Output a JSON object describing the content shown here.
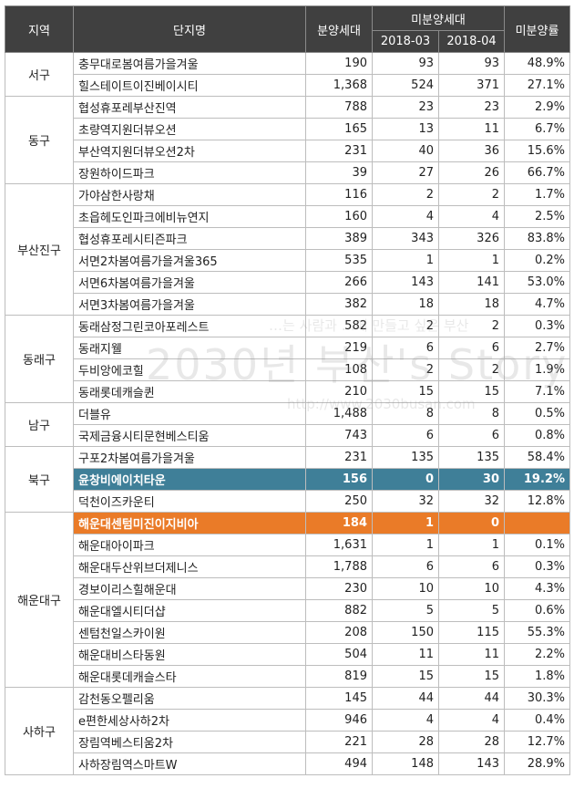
{
  "headers": {
    "region": "지역",
    "complex": "단지명",
    "supply": "분양세대",
    "unsold": "미분양세대",
    "month1": "2018-03",
    "month2": "2018-04",
    "rate": "미분양률"
  },
  "colors": {
    "header_bg": "#404040",
    "highlight_blue": "#3f7f98",
    "highlight_orange": "#ea7b28"
  },
  "groups": [
    {
      "region": "서구",
      "rows": [
        {
          "name": "충무대로봄여름가을겨울",
          "supply": "190",
          "m1": "93",
          "m2": "93",
          "rate": "48.9%"
        },
        {
          "name": "힐스테이트이진베이시티",
          "supply": "1,368",
          "m1": "524",
          "m2": "371",
          "rate": "27.1%"
        }
      ]
    },
    {
      "region": "동구",
      "rows": [
        {
          "name": "협성휴포레부산진역",
          "supply": "788",
          "m1": "23",
          "m2": "23",
          "rate": "2.9%"
        },
        {
          "name": "초량역지원더뷰오션",
          "supply": "165",
          "m1": "13",
          "m2": "11",
          "rate": "6.7%"
        },
        {
          "name": "부산역지원더뷰오션2차",
          "supply": "231",
          "m1": "40",
          "m2": "36",
          "rate": "15.6%"
        },
        {
          "name": "장원하이드파크",
          "supply": "39",
          "m1": "27",
          "m2": "26",
          "rate": "66.7%"
        }
      ]
    },
    {
      "region": "부산진구",
      "rows": [
        {
          "name": "가야삼한사랑채",
          "supply": "116",
          "m1": "2",
          "m2": "2",
          "rate": "1.7%"
        },
        {
          "name": "초읍헤도인파크에비뉴연지",
          "supply": "160",
          "m1": "4",
          "m2": "4",
          "rate": "2.5%"
        },
        {
          "name": "협성휴포레시티즌파크",
          "supply": "389",
          "m1": "343",
          "m2": "326",
          "rate": "83.8%"
        },
        {
          "name": "서면2차봄여름가을겨울365",
          "supply": "535",
          "m1": "1",
          "m2": "1",
          "rate": "0.2%"
        },
        {
          "name": "서면6차봄여름가을겨울",
          "supply": "266",
          "m1": "143",
          "m2": "141",
          "rate": "53.0%"
        },
        {
          "name": "서면3차봄여름가을겨울",
          "supply": "382",
          "m1": "18",
          "m2": "18",
          "rate": "4.7%"
        }
      ]
    },
    {
      "region": "동래구",
      "rows": [
        {
          "name": "동래삼정그린코아포레스트",
          "supply": "582",
          "m1": "2",
          "m2": "2",
          "rate": "0.3%"
        },
        {
          "name": "동래지웰",
          "supply": "219",
          "m1": "6",
          "m2": "6",
          "rate": "2.7%"
        },
        {
          "name": "두비앙에코힐",
          "supply": "108",
          "m1": "2",
          "m2": "2",
          "rate": "1.9%"
        },
        {
          "name": "동래롯데캐슬퀸",
          "supply": "210",
          "m1": "15",
          "m2": "15",
          "rate": "7.1%"
        }
      ]
    },
    {
      "region": "남구",
      "rows": [
        {
          "name": "더블유",
          "supply": "1,488",
          "m1": "8",
          "m2": "8",
          "rate": "0.5%"
        },
        {
          "name": "국제금융시티문현베스티움",
          "supply": "743",
          "m1": "6",
          "m2": "6",
          "rate": "0.8%"
        }
      ]
    },
    {
      "region": "북구",
      "rows": [
        {
          "name": "구포2차봄여름가을겨울",
          "supply": "231",
          "m1": "135",
          "m2": "135",
          "rate": "58.4%"
        },
        {
          "name": "윤창비에이치타운",
          "supply": "156",
          "m1": "0",
          "m2": "30",
          "rate": "19.2%",
          "highlight": "blue"
        },
        {
          "name": "덕천이즈카운티",
          "supply": "250",
          "m1": "32",
          "m2": "32",
          "rate": "12.8%"
        }
      ]
    },
    {
      "region": "해운대구",
      "rows": [
        {
          "name": "해운대센텀미진이지비아",
          "supply": "184",
          "m1": "1",
          "m2": "0",
          "rate": "",
          "highlight": "orange"
        },
        {
          "name": "해운대아이파크",
          "supply": "1,631",
          "m1": "1",
          "m2": "1",
          "rate": "0.1%"
        },
        {
          "name": "해운대두산위브더제니스",
          "supply": "1,788",
          "m1": "6",
          "m2": "6",
          "rate": "0.3%"
        },
        {
          "name": "경보이리스힐해운대",
          "supply": "230",
          "m1": "10",
          "m2": "10",
          "rate": "4.3%"
        },
        {
          "name": "해운대엘시티더샵",
          "supply": "882",
          "m1": "5",
          "m2": "5",
          "rate": "0.6%"
        },
        {
          "name": "센텀천일스카이원",
          "supply": "208",
          "m1": "150",
          "m2": "115",
          "rate": "55.3%"
        },
        {
          "name": "해운대비스타동원",
          "supply": "504",
          "m1": "11",
          "m2": "11",
          "rate": "2.2%"
        },
        {
          "name": "해운대롯데캐슬스타",
          "supply": "819",
          "m1": "15",
          "m2": "15",
          "rate": "1.8%"
        }
      ]
    },
    {
      "region": "사하구",
      "rows": [
        {
          "name": "감천동오펠리움",
          "supply": "145",
          "m1": "44",
          "m2": "44",
          "rate": "30.3%"
        },
        {
          "name": "e편한세상사하2차",
          "supply": "946",
          "m1": "4",
          "m2": "4",
          "rate": "0.4%"
        },
        {
          "name": "장림역베스티움2차",
          "supply": "221",
          "m1": "28",
          "m2": "28",
          "rate": "12.7%"
        },
        {
          "name": "사하장림역스마트W",
          "supply": "494",
          "m1": "148",
          "m2": "143",
          "rate": "28.9%"
        }
      ]
    }
  ],
  "watermark": {
    "line1": "…는 사람과 …에 만들고 싶은 부산",
    "line2": "2030년 부산's Story",
    "line3": "http://www.2030busan.com"
  }
}
